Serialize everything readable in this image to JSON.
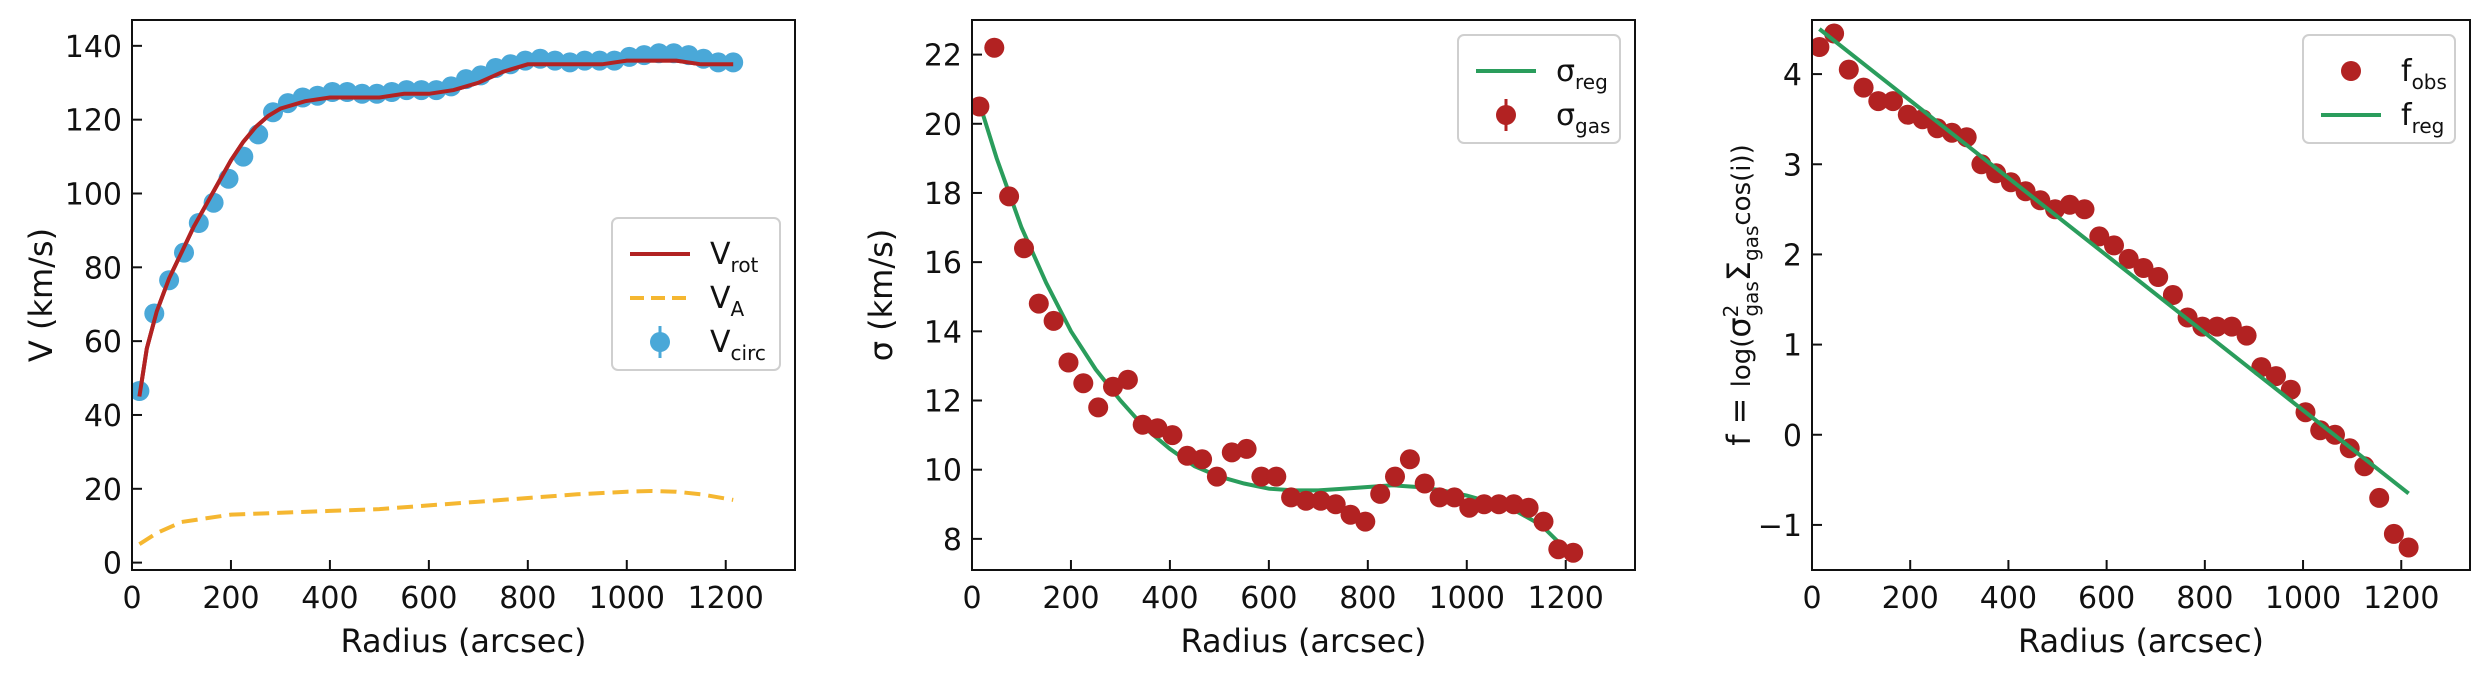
{
  "chart_data": [
    {
      "type": "line",
      "xlabel": "Radius (arcsec)",
      "ylabel": "V (km/s)",
      "xlim": [
        0,
        1340
      ],
      "ylim": [
        -2,
        147
      ],
      "xticks": [
        0,
        200,
        400,
        600,
        800,
        1000,
        1200
      ],
      "yticks": [
        0,
        20,
        40,
        60,
        80,
        100,
        120,
        140
      ],
      "legend_position": "center-right",
      "series": [
        {
          "name": "V",
          "name_sub": "rot",
          "kind": "line",
          "color": "#b22222",
          "x": [
            15,
            30,
            50,
            75,
            100,
            125,
            150,
            175,
            200,
            225,
            250,
            275,
            300,
            350,
            400,
            450,
            500,
            550,
            600,
            650,
            700,
            750,
            800,
            850,
            900,
            950,
            1000,
            1050,
            1100,
            1150,
            1200,
            1215
          ],
          "y": [
            45,
            58,
            68,
            77,
            84,
            91,
            97,
            103,
            109,
            114,
            118,
            121,
            123,
            125,
            126,
            126,
            126,
            127,
            127,
            128,
            130,
            133,
            135,
            135,
            135,
            135,
            136,
            136,
            136,
            135,
            135,
            135
          ]
        },
        {
          "name": "V",
          "name_sub": "A",
          "kind": "dashed",
          "color": "#f5b731",
          "x": [
            15,
            50,
            100,
            200,
            300,
            400,
            500,
            600,
            700,
            800,
            900,
            1000,
            1050,
            1100,
            1150,
            1215
          ],
          "y": [
            5,
            8,
            11,
            13,
            13.5,
            14,
            14.5,
            15.5,
            16.5,
            17.5,
            18.5,
            19.2,
            19.4,
            19.2,
            18.5,
            17
          ]
        },
        {
          "name": "V",
          "name_sub": "circ",
          "kind": "errorbar",
          "color": "#4aa8d8",
          "x": [
            15,
            45,
            75,
            105,
            135,
            165,
            195,
            225,
            255,
            285,
            315,
            345,
            375,
            405,
            435,
            465,
            495,
            525,
            555,
            585,
            615,
            645,
            675,
            705,
            735,
            765,
            795,
            825,
            855,
            885,
            915,
            945,
            975,
            1005,
            1035,
            1065,
            1095,
            1125,
            1155,
            1185,
            1215
          ],
          "y": [
            46.5,
            67.5,
            76.5,
            84,
            92,
            97.5,
            104,
            110,
            116,
            122,
            124.5,
            126,
            126.5,
            127.5,
            127.5,
            127,
            127,
            127.5,
            128,
            128,
            128,
            129,
            131,
            132,
            134,
            135,
            136,
            136.5,
            136,
            135.5,
            136,
            136,
            136,
            137,
            137.5,
            138,
            138,
            137.5,
            136.5,
            135.5,
            135.5
          ]
        }
      ]
    },
    {
      "type": "scatter",
      "xlabel": "Radius (arcsec)",
      "ylabel": "σ (km/s)",
      "xlim": [
        0,
        1340
      ],
      "ylim": [
        7.1,
        23
      ],
      "xticks": [
        0,
        200,
        400,
        600,
        800,
        1000,
        1200
      ],
      "yticks": [
        8,
        10,
        12,
        14,
        16,
        18,
        20,
        22
      ],
      "legend_position": "top-right",
      "series": [
        {
          "name": "σ",
          "name_sub": "reg",
          "kind": "line",
          "color": "#2a9d5c",
          "x": [
            15,
            50,
            100,
            150,
            200,
            250,
            300,
            350,
            400,
            450,
            500,
            550,
            600,
            650,
            700,
            750,
            800,
            850,
            900,
            950,
            1000,
            1050,
            1100,
            1150,
            1200,
            1215
          ],
          "y": [
            20.6,
            19.0,
            17.0,
            15.4,
            14.0,
            12.9,
            12.0,
            11.2,
            10.6,
            10.1,
            9.8,
            9.6,
            9.45,
            9.4,
            9.4,
            9.45,
            9.5,
            9.55,
            9.5,
            9.4,
            9.25,
            9.05,
            8.8,
            8.4,
            7.7,
            7.5
          ]
        },
        {
          "name": "σ",
          "name_sub": "gas",
          "kind": "errorbar",
          "color": "#b22222",
          "x": [
            15,
            45,
            75,
            105,
            135,
            165,
            195,
            225,
            255,
            285,
            315,
            345,
            375,
            405,
            435,
            465,
            495,
            525,
            555,
            585,
            615,
            645,
            675,
            705,
            735,
            765,
            795,
            825,
            855,
            885,
            915,
            945,
            975,
            1005,
            1035,
            1065,
            1095,
            1125,
            1155,
            1185,
            1215
          ],
          "y": [
            20.5,
            22.2,
            17.9,
            16.4,
            14.8,
            14.3,
            13.1,
            12.5,
            11.8,
            12.4,
            12.6,
            11.3,
            11.2,
            11.0,
            10.4,
            10.3,
            9.8,
            10.5,
            10.6,
            9.8,
            9.8,
            9.2,
            9.1,
            9.1,
            9.0,
            8.7,
            8.5,
            9.3,
            9.8,
            10.3,
            9.6,
            9.2,
            9.2,
            8.9,
            9.0,
            9.0,
            9.0,
            8.9,
            8.5,
            7.7,
            7.6
          ]
        }
      ]
    },
    {
      "type": "scatter",
      "xlabel": "Radius (arcsec)",
      "ylabel_parts": {
        "pre": "f = ",
        "log": "log(",
        "sigma": "σ",
        "sigma_sup": "2",
        "sigma_sub": "gas",
        "Sigma": "Σ",
        "Sigma_sub": "gas",
        "post": "cos(i))"
      },
      "xlim": [
        0,
        1340
      ],
      "ylim": [
        -1.5,
        4.6
      ],
      "xticks": [
        0,
        200,
        400,
        600,
        800,
        1000,
        1200
      ],
      "yticks": [
        -1,
        0,
        1,
        2,
        3,
        4
      ],
      "legend_position": "top-right",
      "series": [
        {
          "name": "f",
          "name_sub": "obs",
          "kind": "points",
          "color": "#b22222",
          "x": [
            15,
            45,
            75,
            105,
            135,
            165,
            195,
            225,
            255,
            285,
            315,
            345,
            375,
            405,
            435,
            465,
            495,
            525,
            555,
            585,
            615,
            645,
            675,
            705,
            735,
            765,
            795,
            825,
            855,
            885,
            915,
            945,
            975,
            1005,
            1035,
            1065,
            1095,
            1125,
            1155,
            1185,
            1215
          ],
          "y": [
            4.3,
            4.45,
            4.05,
            3.85,
            3.7,
            3.7,
            3.55,
            3.5,
            3.4,
            3.35,
            3.3,
            3.0,
            2.9,
            2.8,
            2.7,
            2.6,
            2.5,
            2.55,
            2.5,
            2.2,
            2.1,
            1.95,
            1.85,
            1.75,
            1.55,
            1.3,
            1.2,
            1.2,
            1.2,
            1.1,
            0.75,
            0.65,
            0.5,
            0.25,
            0.05,
            0.0,
            -0.15,
            -0.35,
            -0.7,
            -1.1,
            -1.25
          ]
        },
        {
          "name": "f",
          "name_sub": "reg",
          "kind": "line",
          "color": "#2a9d5c",
          "x": [
            15,
            1215
          ],
          "y": [
            4.5,
            -0.65
          ]
        }
      ]
    }
  ]
}
